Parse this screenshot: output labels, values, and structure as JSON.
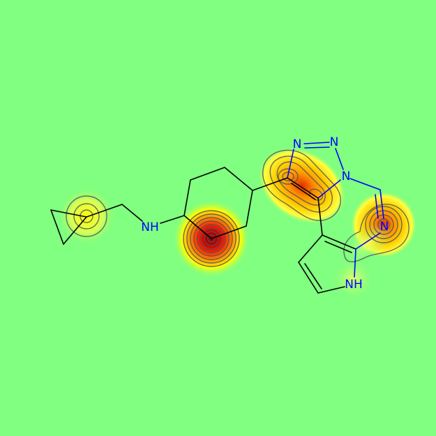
{
  "background_color": "#80ff80",
  "bond_color": "#000000",
  "heteroatom_color": "#0000ff",
  "atom_labels": {
    "amine": "NH",
    "triazole_n1": "N",
    "triazole_n2": "N",
    "triazole_n3": "N",
    "pyrazine_n": "N",
    "pyrrole_nh": "NH"
  },
  "heatmap_colors": [
    "#80ff80",
    "#ffff00",
    "#ffa500",
    "#ff0000",
    "#8b0000"
  ]
}
